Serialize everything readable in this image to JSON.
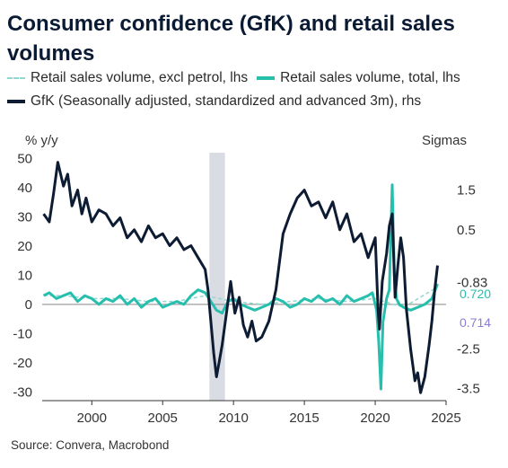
{
  "chart_data": {
    "type": "line",
    "title": "Consumer confidence (GfK) and retail sales volumes",
    "legend": [
      {
        "name": "Retail sales volume, excl petrol, lhs",
        "color": "#8ed8cf",
        "style": "dashed"
      },
      {
        "name": "Retail sales volume, total, lhs",
        "color": "#26bfad",
        "style": "solid"
      },
      {
        "name": "GfK (Seasonally adjusted, standardized and advanced 3m), rhs",
        "color": "#0d1b33",
        "style": "solid"
      }
    ],
    "y_left_label": "% y/y",
    "y_right_label": "Sigmas",
    "y_left_range": [
      -33,
      52
    ],
    "y_right_range": [
      -3.8,
      2.44
    ],
    "x_range": [
      1996.5,
      2025.0
    ],
    "x_ticks": [
      "2000",
      "2005",
      "2010",
      "2015",
      "2020",
      "2025"
    ],
    "y_left_ticks": [
      "50",
      "40",
      "30",
      "20",
      "10",
      "0",
      "-10",
      "-20",
      "-30"
    ],
    "y_right_ticks": [
      "1.5",
      "0.5",
      "-0.83",
      "-2.5",
      "-3.5"
    ],
    "last_value_labels": [
      "0.720",
      "0.714"
    ],
    "recession_shading": [
      2008.3,
      2009.4
    ],
    "series": [
      {
        "name": "Retail sales volume, total, lhs",
        "color": "#26bfad",
        "axis": "left",
        "x": [
          1996.6,
          1997.0,
          1997.5,
          1998.0,
          1998.5,
          1999.0,
          1999.5,
          2000.0,
          2000.5,
          2001.0,
          2001.5,
          2002.0,
          2002.5,
          2003.0,
          2003.5,
          2004.0,
          2004.5,
          2005.0,
          2005.5,
          2006.0,
          2006.5,
          2007.0,
          2007.5,
          2008.0,
          2008.4,
          2008.8,
          2009.2,
          2009.6,
          2010.0,
          2010.5,
          2011.0,
          2011.5,
          2012.0,
          2012.5,
          2013.0,
          2013.5,
          2014.0,
          2014.5,
          2015.0,
          2015.5,
          2016.0,
          2016.5,
          2017.0,
          2017.5,
          2018.0,
          2018.5,
          2019.0,
          2019.5,
          2019.8,
          2020.1,
          2020.25,
          2020.4,
          2020.55,
          2020.8,
          2021.0,
          2021.2,
          2021.35,
          2021.5,
          2021.7,
          2022.0,
          2022.5,
          2023.0,
          2023.5,
          2024.0,
          2024.4
        ],
        "y": [
          3,
          4,
          2,
          3,
          4,
          1,
          3,
          2,
          0,
          2,
          1,
          3,
          0,
          2,
          -1,
          1,
          2,
          -1,
          0,
          1,
          0,
          3,
          5,
          4,
          1,
          -2,
          -3,
          1,
          2,
          0,
          -1,
          -2,
          -1,
          0,
          2,
          1,
          -1,
          0,
          2,
          1,
          3,
          1,
          2,
          0,
          3,
          1,
          2,
          3,
          4,
          -2,
          -13,
          -29,
          -6,
          2,
          5,
          41,
          10,
          2,
          0,
          -1,
          -2,
          -1,
          0,
          2,
          7
        ]
      },
      {
        "name": "GfK (Seasonally adjusted, standardized and advanced 3m), rhs",
        "color": "#0d1b33",
        "axis": "right",
        "x": [
          1996.6,
          1997.0,
          1997.3,
          1997.6,
          1998.0,
          1998.3,
          1998.6,
          1999.0,
          1999.3,
          1999.6,
          2000.0,
          2000.5,
          2001.0,
          2001.5,
          2002.0,
          2002.5,
          2003.0,
          2003.5,
          2004.0,
          2004.5,
          2005.0,
          2005.5,
          2006.0,
          2006.5,
          2007.0,
          2007.5,
          2008.0,
          2008.2,
          2008.4,
          2008.6,
          2008.8,
          2009.0,
          2009.2,
          2009.5,
          2009.8,
          2010.1,
          2010.4,
          2010.7,
          2011.0,
          2011.3,
          2011.6,
          2012.0,
          2012.5,
          2013.0,
          2013.5,
          2014.0,
          2014.5,
          2015.0,
          2015.5,
          2016.0,
          2016.5,
          2017.0,
          2017.5,
          2018.0,
          2018.5,
          2019.0,
          2019.5,
          2020.0,
          2020.2,
          2020.3,
          2020.5,
          2020.8,
          2021.0,
          2021.2,
          2021.4,
          2021.6,
          2021.8,
          2022.0,
          2022.2,
          2022.5,
          2022.8,
          2023.0,
          2023.2,
          2023.5,
          2023.8,
          2024.0,
          2024.2,
          2024.4
        ],
        "y": [
          0.9,
          0.7,
          1.4,
          2.2,
          1.6,
          1.9,
          1.1,
          1.5,
          0.9,
          1.3,
          0.7,
          1.0,
          0.9,
          0.6,
          0.8,
          0.3,
          0.5,
          0.2,
          0.6,
          0.3,
          0.4,
          0.1,
          0.3,
          0.0,
          0.1,
          -0.2,
          -0.5,
          -1.0,
          -1.8,
          -2.6,
          -3.2,
          -2.8,
          -2.4,
          -1.6,
          -0.8,
          -1.6,
          -1.2,
          -1.9,
          -2.2,
          -1.8,
          -2.3,
          -2.2,
          -1.8,
          -1.0,
          0.4,
          0.9,
          1.3,
          1.5,
          1.1,
          1.2,
          0.8,
          1.2,
          0.5,
          0.9,
          0.2,
          0.4,
          -0.2,
          0.3,
          -1.5,
          -2.0,
          -0.8,
          -0.1,
          0.6,
          0.9,
          -1.2,
          -0.4,
          0.3,
          -0.2,
          -1.5,
          -2.5,
          -3.3,
          -3.1,
          -3.6,
          -3.2,
          -2.4,
          -1.8,
          -1.0,
          -0.4
        ]
      },
      {
        "name": "Retail sales volume, excl petrol, lhs",
        "color": "#8ed8cf",
        "axis": "left",
        "x": [
          1996.6,
          1998.0,
          2000.0,
          2002.0,
          2004.0,
          2006.0,
          2008.0,
          2010.0,
          2012.0,
          2014.0,
          2016.0,
          2018.0,
          2020.0,
          2022.0,
          2024.4
        ],
        "y": [
          3,
          3,
          2,
          2,
          1,
          1,
          3,
          1,
          0,
          1,
          2,
          1,
          2,
          -1,
          6
        ]
      }
    ]
  }
}
